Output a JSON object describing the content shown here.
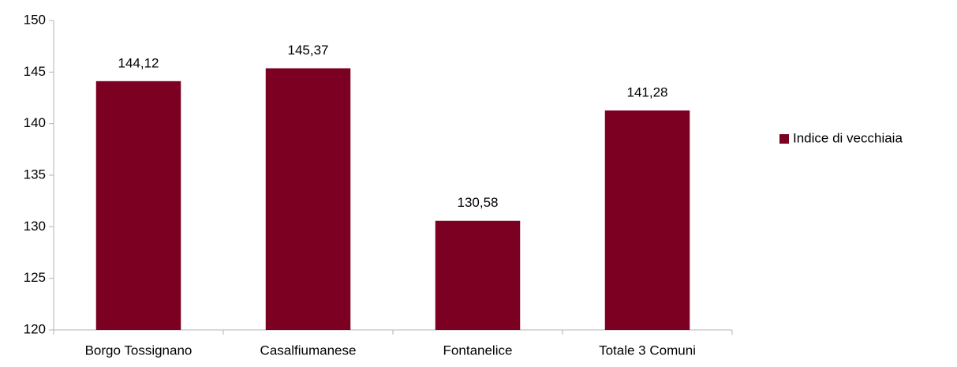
{
  "chart_data": {
    "type": "bar",
    "categories": [
      "Borgo Tossignano",
      "Casalfiumanese",
      "Fontanelice",
      "Totale 3 Comuni"
    ],
    "series": [
      {
        "name": "Indice di vecchiaia",
        "color": "#7b0021",
        "values": [
          144.12,
          145.37,
          130.58,
          141.28
        ],
        "value_labels": [
          "144,12",
          "145,37",
          "130,58",
          "141,28"
        ]
      }
    ],
    "ylim": [
      120,
      150
    ],
    "yticks": [
      120,
      125,
      130,
      135,
      140,
      145,
      150
    ],
    "grid": false,
    "legend": "right"
  }
}
